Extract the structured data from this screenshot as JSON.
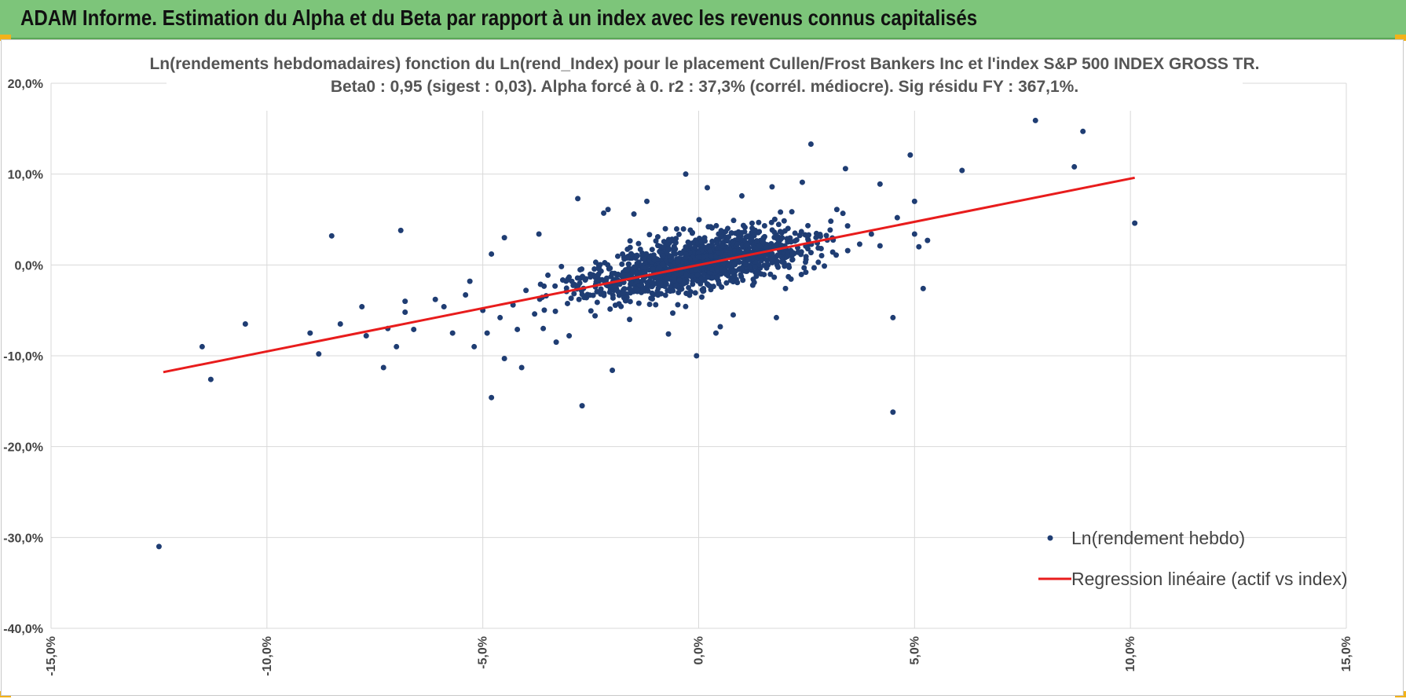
{
  "banner": {
    "title": "ADAM Informe. Estimation du Alpha et du Beta par rapport à un index avec les revenus connus capitalisés",
    "background": "#7dc57a",
    "corner_color": "#f2b21a"
  },
  "chart_data": {
    "type": "scatter",
    "title": "Ln(rendements hebdomadaires) fonction du Ln(rend_Index) pour le placement Cullen/Frost Bankers Inc et l'index S&P 500 INDEX GROSS TR.",
    "subtitle": "Beta0 : 0,95  (sigest : 0,03).  Alpha forcé à 0. r2 : 37,3% (corrél. médiocre). Sig résidu FY : 367,1%.",
    "xlabel": "",
    "ylabel": "",
    "xlim": [
      -15,
      15
    ],
    "ylim": [
      -40,
      20
    ],
    "x_ticks": [
      -15,
      -10,
      -5,
      0,
      5,
      10,
      15
    ],
    "y_ticks": [
      -40,
      -30,
      -20,
      -10,
      0,
      10,
      20
    ],
    "x_tick_labels": [
      "-15,0%",
      "-10,0%",
      "-5,0%",
      "0,0%",
      "5,0%",
      "10,0%",
      "15,0%"
    ],
    "y_tick_labels": [
      "-40,0%",
      "-30,0%",
      "-20,0%",
      "-10,0%",
      "0,0%",
      "10,0%",
      "20,0%"
    ],
    "grid": true,
    "legend_position": "bottom-right",
    "series": [
      {
        "name": "Ln(rendement hebdo)",
        "kind": "scatter",
        "color": "#1f3d73",
        "points": [
          [
            -12.5,
            -31
          ],
          [
            -11.5,
            -9
          ],
          [
            -11.3,
            -12.6
          ],
          [
            -10.5,
            -6.5
          ],
          [
            -9.0,
            -7.5
          ],
          [
            -8.8,
            -9.8
          ],
          [
            -8.5,
            3.2
          ],
          [
            -8.3,
            -6.5
          ],
          [
            -7.8,
            -4.6
          ],
          [
            -7.7,
            -7.8
          ],
          [
            -7.3,
            -11.3
          ],
          [
            -7.2,
            -7.0
          ],
          [
            -7.0,
            -9.0
          ],
          [
            -6.9,
            3.8
          ],
          [
            -6.8,
            -4.0
          ],
          [
            -6.8,
            -5.2
          ],
          [
            -6.6,
            -7.1
          ],
          [
            -6.1,
            -3.8
          ],
          [
            -5.9,
            -4.6
          ],
          [
            -5.7,
            -7.5
          ],
          [
            -5.4,
            -3.3
          ],
          [
            -5.3,
            -1.8
          ],
          [
            -5.2,
            -9.0
          ],
          [
            -5.0,
            -5.0
          ],
          [
            -4.9,
            -7.5
          ],
          [
            -4.8,
            -14.6
          ],
          [
            -4.8,
            1.2
          ],
          [
            -4.6,
            -5.8
          ],
          [
            -4.5,
            3.0
          ],
          [
            -4.5,
            -10.3
          ],
          [
            -4.3,
            -4.4
          ],
          [
            -4.2,
            -7.1
          ],
          [
            -4.1,
            -11.3
          ],
          [
            -4.0,
            -2.8
          ],
          [
            -3.8,
            -5.4
          ],
          [
            -3.7,
            3.4
          ],
          [
            -3.6,
            -7.0
          ],
          [
            -3.3,
            -8.5
          ],
          [
            -3.0,
            -7.8
          ],
          [
            -2.8,
            7.3
          ],
          [
            -2.7,
            -15.5
          ],
          [
            -2.6,
            -3.6
          ],
          [
            -2.4,
            -5.6
          ],
          [
            -2.2,
            5.7
          ],
          [
            -2.1,
            6.1
          ],
          [
            -2.0,
            -11.6
          ],
          [
            -1.8,
            -3.1
          ],
          [
            -1.6,
            -6.0
          ],
          [
            -1.5,
            1.0
          ],
          [
            -1.5,
            5.6
          ],
          [
            -1.2,
            7.0
          ],
          [
            -0.7,
            -7.6
          ],
          [
            -0.6,
            -5.3
          ],
          [
            -0.3,
            10.0
          ],
          [
            -0.05,
            -10.0
          ],
          [
            0.2,
            8.5
          ],
          [
            0.4,
            -7.5
          ],
          [
            0.5,
            -6.8
          ],
          [
            0.8,
            -5.5
          ],
          [
            1.0,
            7.6
          ],
          [
            1.7,
            8.6
          ],
          [
            1.8,
            -5.8
          ],
          [
            2.4,
            9.1
          ],
          [
            2.6,
            13.3
          ],
          [
            3.2,
            6.1
          ],
          [
            3.4,
            10.6
          ],
          [
            4.0,
            3.4
          ],
          [
            4.2,
            8.9
          ],
          [
            4.5,
            -16.2
          ],
          [
            4.5,
            -5.8
          ],
          [
            4.6,
            5.2
          ],
          [
            4.9,
            12.1
          ],
          [
            5.0,
            7.0
          ],
          [
            5.0,
            3.4
          ],
          [
            5.1,
            2.0
          ],
          [
            5.2,
            -2.6
          ],
          [
            5.3,
            2.7
          ],
          [
            6.1,
            10.4
          ],
          [
            7.8,
            15.9
          ],
          [
            8.7,
            10.8
          ],
          [
            8.9,
            14.7
          ],
          [
            10.1,
            4.6
          ]
        ],
        "cluster": {
          "center": [
            0.0,
            0.2
          ],
          "sigma_x": 1.35,
          "beta": 0.95,
          "residual_sigma": 2.7,
          "count": 1300
        }
      },
      {
        "name": "Regression linéaire (actif vs index)",
        "kind": "line",
        "color": "#e81c1c",
        "x": [
          -12.4,
          10.1
        ],
        "y": [
          -11.8,
          9.6
        ]
      }
    ]
  }
}
